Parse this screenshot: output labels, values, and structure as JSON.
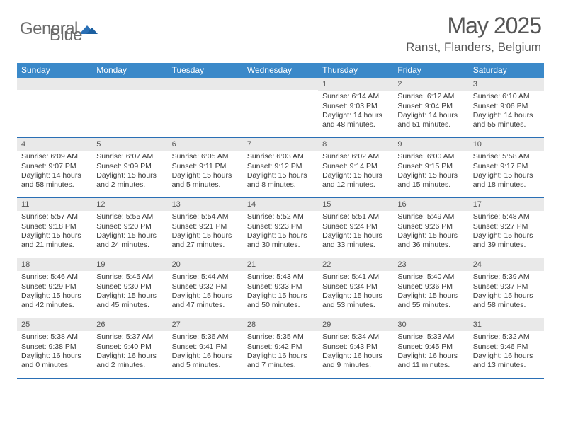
{
  "brand": {
    "part1": "General",
    "part2": "Blue"
  },
  "title": "May 2025",
  "location": "Ranst, Flanders, Belgium",
  "colors": {
    "header_bar": "#3b89c9",
    "week_divider": "#2a6fb5",
    "daynum_bg": "#e9e9e9",
    "text": "#3a3a3a",
    "title_text": "#555555"
  },
  "dow": [
    "Sunday",
    "Monday",
    "Tuesday",
    "Wednesday",
    "Thursday",
    "Friday",
    "Saturday"
  ],
  "weeks": [
    [
      {
        "day": "",
        "lines": []
      },
      {
        "day": "",
        "lines": []
      },
      {
        "day": "",
        "lines": []
      },
      {
        "day": "",
        "lines": []
      },
      {
        "day": "1",
        "lines": [
          "Sunrise: 6:14 AM",
          "Sunset: 9:03 PM",
          "Daylight: 14 hours",
          "and 48 minutes."
        ]
      },
      {
        "day": "2",
        "lines": [
          "Sunrise: 6:12 AM",
          "Sunset: 9:04 PM",
          "Daylight: 14 hours",
          "and 51 minutes."
        ]
      },
      {
        "day": "3",
        "lines": [
          "Sunrise: 6:10 AM",
          "Sunset: 9:06 PM",
          "Daylight: 14 hours",
          "and 55 minutes."
        ]
      }
    ],
    [
      {
        "day": "4",
        "lines": [
          "Sunrise: 6:09 AM",
          "Sunset: 9:07 PM",
          "Daylight: 14 hours",
          "and 58 minutes."
        ]
      },
      {
        "day": "5",
        "lines": [
          "Sunrise: 6:07 AM",
          "Sunset: 9:09 PM",
          "Daylight: 15 hours",
          "and 2 minutes."
        ]
      },
      {
        "day": "6",
        "lines": [
          "Sunrise: 6:05 AM",
          "Sunset: 9:11 PM",
          "Daylight: 15 hours",
          "and 5 minutes."
        ]
      },
      {
        "day": "7",
        "lines": [
          "Sunrise: 6:03 AM",
          "Sunset: 9:12 PM",
          "Daylight: 15 hours",
          "and 8 minutes."
        ]
      },
      {
        "day": "8",
        "lines": [
          "Sunrise: 6:02 AM",
          "Sunset: 9:14 PM",
          "Daylight: 15 hours",
          "and 12 minutes."
        ]
      },
      {
        "day": "9",
        "lines": [
          "Sunrise: 6:00 AM",
          "Sunset: 9:15 PM",
          "Daylight: 15 hours",
          "and 15 minutes."
        ]
      },
      {
        "day": "10",
        "lines": [
          "Sunrise: 5:58 AM",
          "Sunset: 9:17 PM",
          "Daylight: 15 hours",
          "and 18 minutes."
        ]
      }
    ],
    [
      {
        "day": "11",
        "lines": [
          "Sunrise: 5:57 AM",
          "Sunset: 9:18 PM",
          "Daylight: 15 hours",
          "and 21 minutes."
        ]
      },
      {
        "day": "12",
        "lines": [
          "Sunrise: 5:55 AM",
          "Sunset: 9:20 PM",
          "Daylight: 15 hours",
          "and 24 minutes."
        ]
      },
      {
        "day": "13",
        "lines": [
          "Sunrise: 5:54 AM",
          "Sunset: 9:21 PM",
          "Daylight: 15 hours",
          "and 27 minutes."
        ]
      },
      {
        "day": "14",
        "lines": [
          "Sunrise: 5:52 AM",
          "Sunset: 9:23 PM",
          "Daylight: 15 hours",
          "and 30 minutes."
        ]
      },
      {
        "day": "15",
        "lines": [
          "Sunrise: 5:51 AM",
          "Sunset: 9:24 PM",
          "Daylight: 15 hours",
          "and 33 minutes."
        ]
      },
      {
        "day": "16",
        "lines": [
          "Sunrise: 5:49 AM",
          "Sunset: 9:26 PM",
          "Daylight: 15 hours",
          "and 36 minutes."
        ]
      },
      {
        "day": "17",
        "lines": [
          "Sunrise: 5:48 AM",
          "Sunset: 9:27 PM",
          "Daylight: 15 hours",
          "and 39 minutes."
        ]
      }
    ],
    [
      {
        "day": "18",
        "lines": [
          "Sunrise: 5:46 AM",
          "Sunset: 9:29 PM",
          "Daylight: 15 hours",
          "and 42 minutes."
        ]
      },
      {
        "day": "19",
        "lines": [
          "Sunrise: 5:45 AM",
          "Sunset: 9:30 PM",
          "Daylight: 15 hours",
          "and 45 minutes."
        ]
      },
      {
        "day": "20",
        "lines": [
          "Sunrise: 5:44 AM",
          "Sunset: 9:32 PM",
          "Daylight: 15 hours",
          "and 47 minutes."
        ]
      },
      {
        "day": "21",
        "lines": [
          "Sunrise: 5:43 AM",
          "Sunset: 9:33 PM",
          "Daylight: 15 hours",
          "and 50 minutes."
        ]
      },
      {
        "day": "22",
        "lines": [
          "Sunrise: 5:41 AM",
          "Sunset: 9:34 PM",
          "Daylight: 15 hours",
          "and 53 minutes."
        ]
      },
      {
        "day": "23",
        "lines": [
          "Sunrise: 5:40 AM",
          "Sunset: 9:36 PM",
          "Daylight: 15 hours",
          "and 55 minutes."
        ]
      },
      {
        "day": "24",
        "lines": [
          "Sunrise: 5:39 AM",
          "Sunset: 9:37 PM",
          "Daylight: 15 hours",
          "and 58 minutes."
        ]
      }
    ],
    [
      {
        "day": "25",
        "lines": [
          "Sunrise: 5:38 AM",
          "Sunset: 9:38 PM",
          "Daylight: 16 hours",
          "and 0 minutes."
        ]
      },
      {
        "day": "26",
        "lines": [
          "Sunrise: 5:37 AM",
          "Sunset: 9:40 PM",
          "Daylight: 16 hours",
          "and 2 minutes."
        ]
      },
      {
        "day": "27",
        "lines": [
          "Sunrise: 5:36 AM",
          "Sunset: 9:41 PM",
          "Daylight: 16 hours",
          "and 5 minutes."
        ]
      },
      {
        "day": "28",
        "lines": [
          "Sunrise: 5:35 AM",
          "Sunset: 9:42 PM",
          "Daylight: 16 hours",
          "and 7 minutes."
        ]
      },
      {
        "day": "29",
        "lines": [
          "Sunrise: 5:34 AM",
          "Sunset: 9:43 PM",
          "Daylight: 16 hours",
          "and 9 minutes."
        ]
      },
      {
        "day": "30",
        "lines": [
          "Sunrise: 5:33 AM",
          "Sunset: 9:45 PM",
          "Daylight: 16 hours",
          "and 11 minutes."
        ]
      },
      {
        "day": "31",
        "lines": [
          "Sunrise: 5:32 AM",
          "Sunset: 9:46 PM",
          "Daylight: 16 hours",
          "and 13 minutes."
        ]
      }
    ]
  ]
}
